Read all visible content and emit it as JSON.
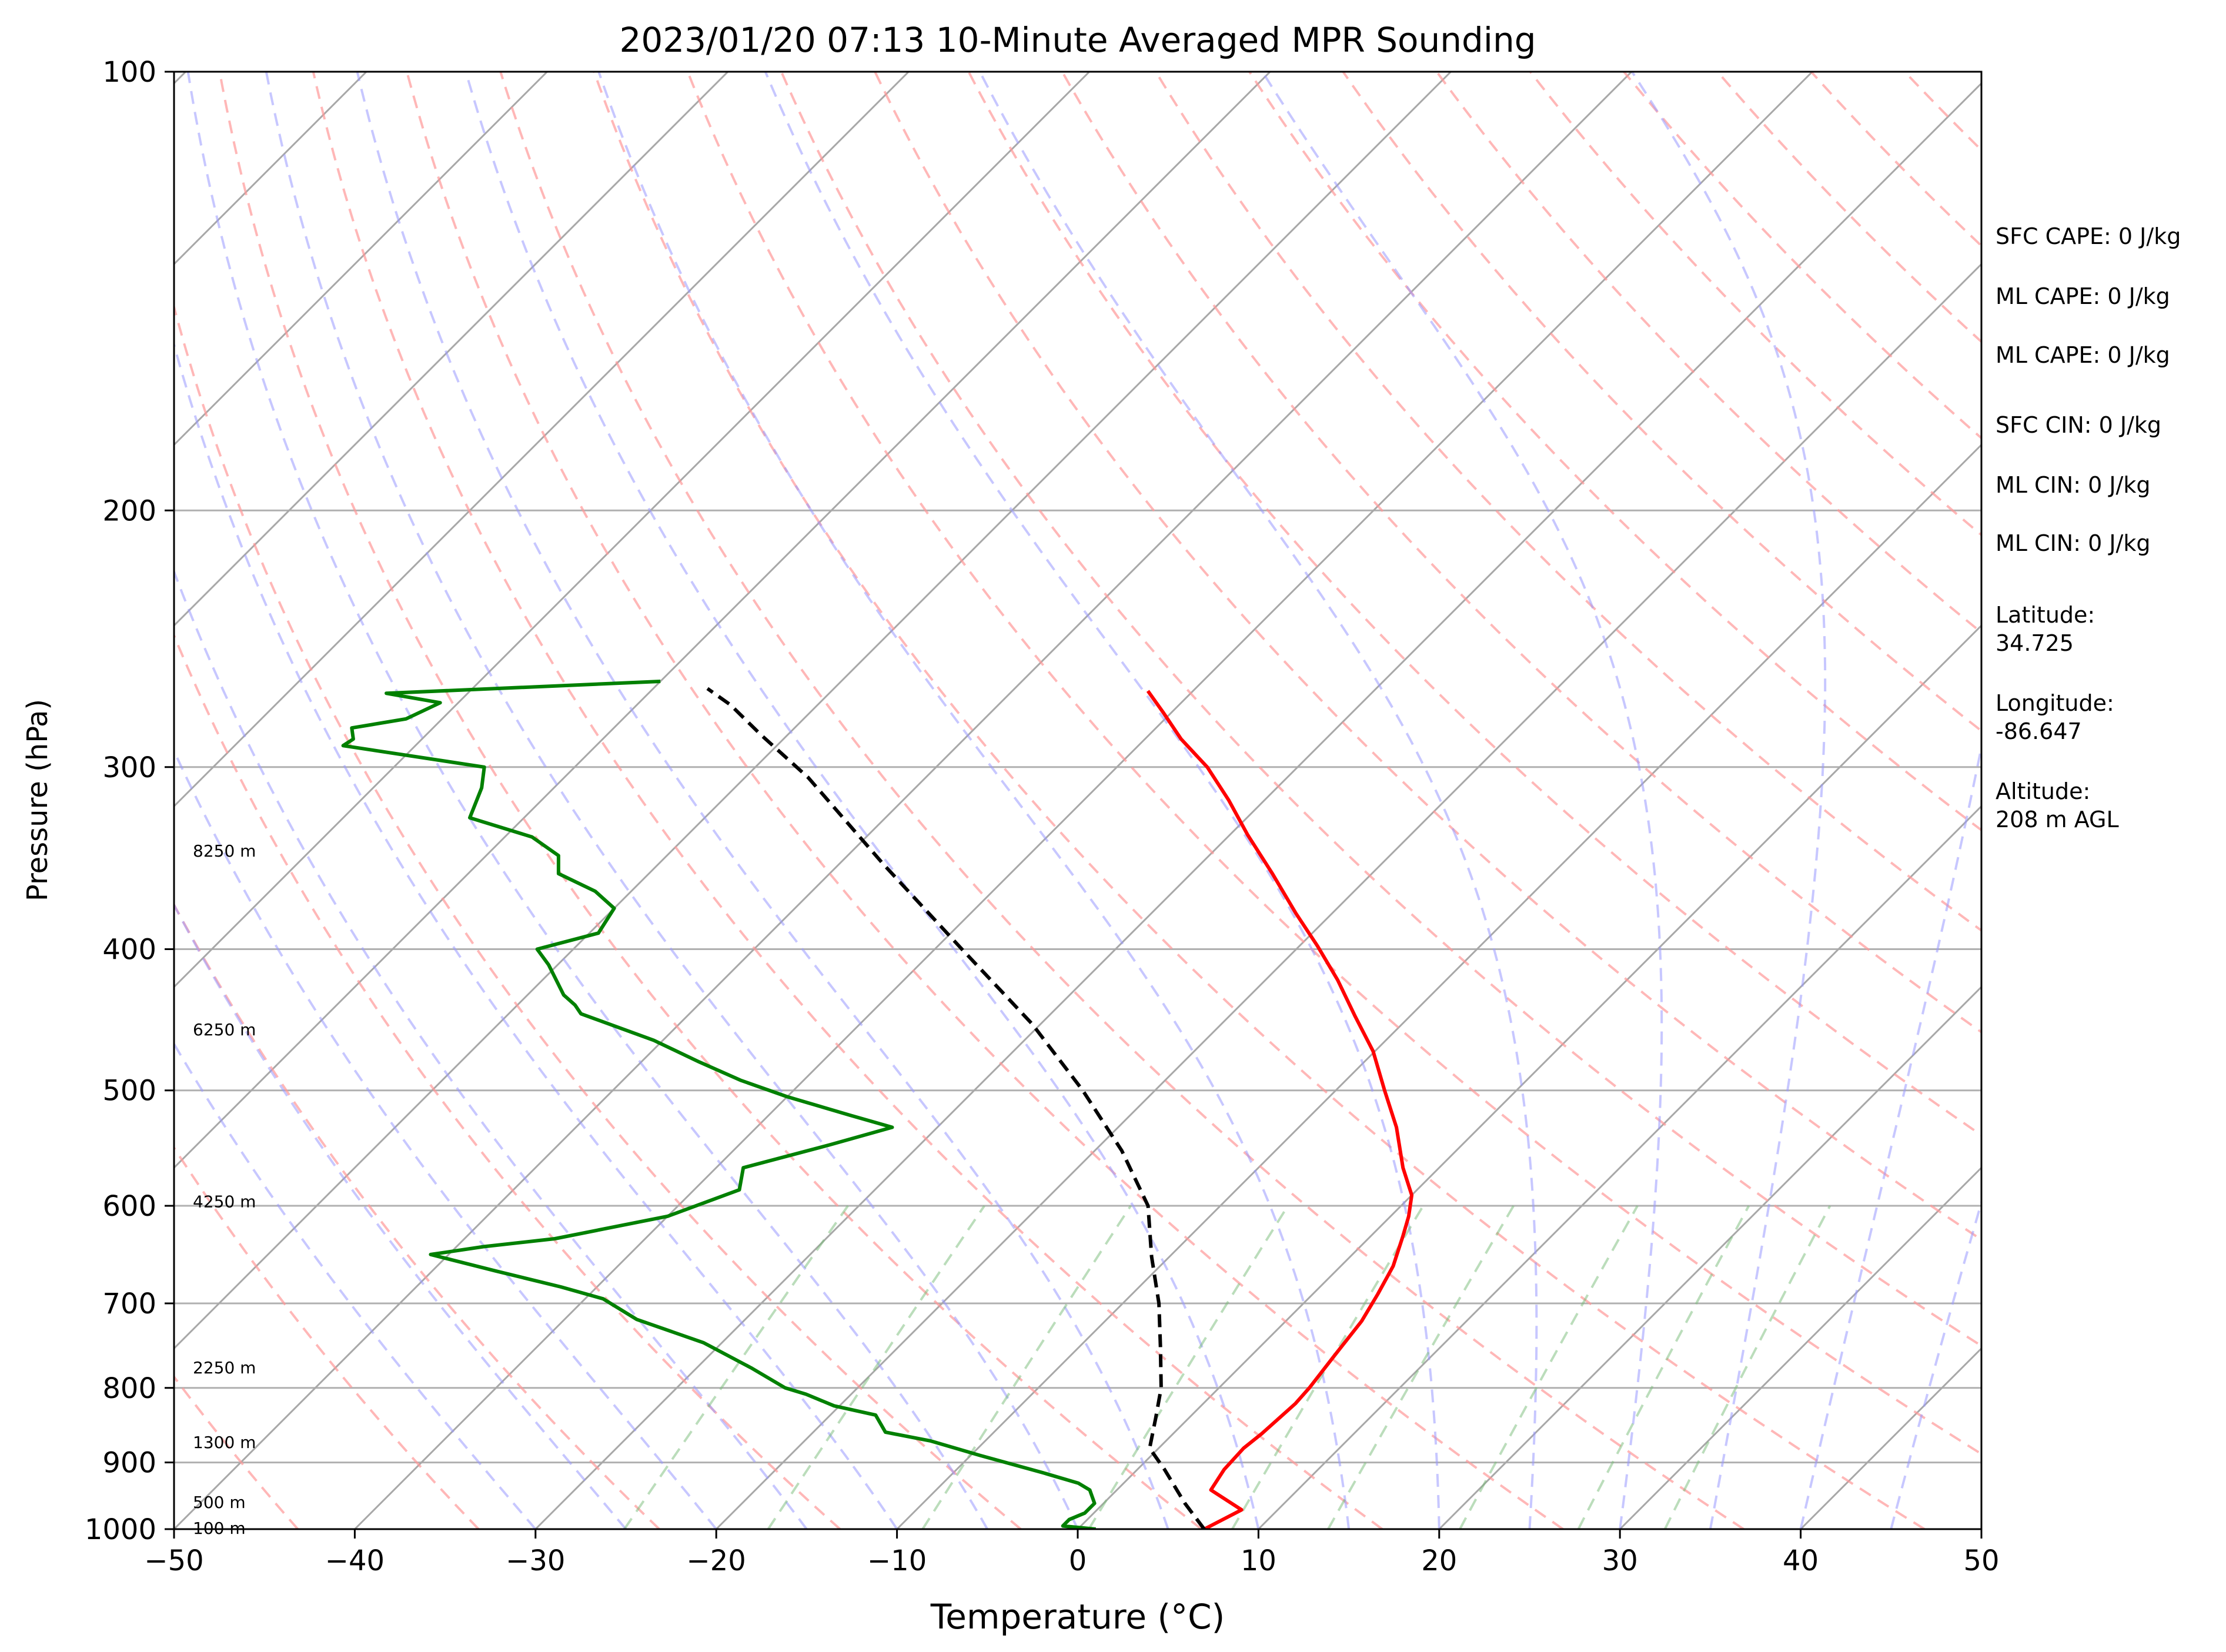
{
  "chart_data": {
    "type": "line",
    "subtype": "skew-t log-p",
    "title": "2023/01/20 07:13 10-Minute Averaged MPR Sounding",
    "xlabel": "Temperature (°C)",
    "ylabel": "Pressure (hPa)",
    "xlim": [
      -50,
      50
    ],
    "ylim": [
      1000,
      100
    ],
    "y_scale": "log",
    "x_ticks": [
      "−50",
      "−40",
      "−30",
      "−20",
      "−10",
      "0",
      "10",
      "20",
      "30",
      "40",
      "50"
    ],
    "x_tick_values": [
      -50,
      -40,
      -30,
      -20,
      -10,
      0,
      10,
      20,
      30,
      40,
      50
    ],
    "y_ticks": [
      "100",
      "200",
      "300",
      "400",
      "500",
      "600",
      "700",
      "800",
      "900",
      "1000"
    ],
    "y_tick_values": [
      100,
      200,
      300,
      400,
      500,
      600,
      700,
      800,
      900,
      1000
    ],
    "grid": true,
    "height_labels": [
      {
        "text": "8250 m",
        "p": 343
      },
      {
        "text": "6250 m",
        "p": 455
      },
      {
        "text": "4250 m",
        "p": 597
      },
      {
        "text": "2250 m",
        "p": 776
      },
      {
        "text": "1300 m",
        "p": 873
      },
      {
        "text": "500 m",
        "p": 960
      },
      {
        "text": "100 m",
        "p": 1000
      }
    ],
    "series": [
      {
        "role": "temperature",
        "color": "#ff0000",
        "points": [
          [
            7.0,
            1000
          ],
          [
            8.0,
            970
          ],
          [
            5.2,
            940
          ],
          [
            4.8,
            910
          ],
          [
            4.7,
            880
          ],
          [
            4.9,
            860
          ],
          [
            5.0,
            840
          ],
          [
            5.1,
            820
          ],
          [
            5.0,
            800
          ],
          [
            4.6,
            760
          ],
          [
            4.2,
            720
          ],
          [
            3.6,
            690
          ],
          [
            2.9,
            660
          ],
          [
            1.8,
            630
          ],
          [
            1.0,
            610
          ],
          [
            0.0,
            590
          ],
          [
            -2.0,
            565
          ],
          [
            -4.6,
            530
          ],
          [
            -7.3,
            500
          ],
          [
            -10.1,
            470
          ],
          [
            -13.0,
            445
          ],
          [
            -16.0,
            420
          ],
          [
            -19.0,
            398
          ],
          [
            -22.0,
            378
          ],
          [
            -25.5,
            355
          ],
          [
            -29.0,
            334
          ],
          [
            -32.0,
            316
          ],
          [
            -35.0,
            300
          ],
          [
            -38.0,
            287
          ],
          [
            -40.5,
            275
          ],
          [
            -42.5,
            266
          ]
        ]
      },
      {
        "role": "dewpoint",
        "color": "#008000",
        "points": [
          [
            1.0,
            1000
          ],
          [
            -1.0,
            995
          ],
          [
            -1.0,
            985
          ],
          [
            -0.5,
            975
          ],
          [
            -0.5,
            960
          ],
          [
            -1.5,
            940
          ],
          [
            -2.5,
            930
          ],
          [
            -5.0,
            915
          ],
          [
            -9.5,
            890
          ],
          [
            -13.0,
            870
          ],
          [
            -16.0,
            858
          ],
          [
            -17.5,
            835
          ],
          [
            -20.3,
            823
          ],
          [
            -22.5,
            808
          ],
          [
            -24.0,
            800
          ],
          [
            -27.0,
            775
          ],
          [
            -31.0,
            745
          ],
          [
            -36.0,
            718
          ],
          [
            -39.0,
            695
          ],
          [
            -42.0,
            682
          ],
          [
            -46.5,
            665
          ],
          [
            -51.0,
            648
          ],
          [
            -48.5,
            640
          ],
          [
            -45.0,
            632
          ],
          [
            -40.0,
            610
          ],
          [
            -37.5,
            585
          ],
          [
            -38.5,
            565
          ],
          [
            -35.0,
            545
          ],
          [
            -32.5,
            530
          ],
          [
            -35.5,
            520
          ],
          [
            -40.0,
            505
          ],
          [
            -43.5,
            492
          ],
          [
            -46.8,
            478
          ],
          [
            -50.5,
            462
          ],
          [
            -56.0,
            443
          ],
          [
            -56.8,
            437
          ],
          [
            -58.0,
            430
          ],
          [
            -60.5,
            410
          ],
          [
            -62.0,
            400
          ],
          [
            -59.5,
            390
          ],
          [
            -60.0,
            375
          ],
          [
            -62.0,
            365
          ],
          [
            -65.0,
            355
          ],
          [
            -66.0,
            345
          ],
          [
            -68.5,
            335
          ],
          [
            -73.0,
            325
          ],
          [
            -74.0,
            310
          ],
          [
            -75.0,
            300
          ],
          [
            -84.0,
            290
          ],
          [
            -83.8,
            287
          ],
          [
            -84.5,
            282
          ],
          [
            -82.0,
            278
          ],
          [
            -81.0,
            271
          ],
          [
            -84.5,
            267
          ],
          [
            -70.0,
            262
          ]
        ]
      },
      {
        "role": "parcel",
        "color": "#000000",
        "points": [
          [
            7.0,
            1000
          ],
          [
            4.5,
            960
          ],
          [
            1.5,
            910
          ],
          [
            -0.5,
            880
          ],
          [
            -1.8,
            840
          ],
          [
            -3.2,
            800
          ],
          [
            -5.5,
            750
          ],
          [
            -8.0,
            700
          ],
          [
            -11.0,
            650
          ],
          [
            -14.0,
            600
          ],
          [
            -18.5,
            550
          ],
          [
            -24.0,
            500
          ],
          [
            -30.5,
            450
          ],
          [
            -38.5,
            400
          ],
          [
            -47.5,
            350
          ],
          [
            -56.5,
            305
          ],
          [
            -61.5,
            285
          ],
          [
            -64.8,
            272
          ],
          [
            -67.0,
            265
          ]
        ]
      }
    ],
    "annotations": [
      "SFC CAPE: 0 J/kg",
      "ML CAPE: 0 J/kg",
      "ML CAPE: 0 J/kg",
      "SFC CIN: 0 J/kg",
      "ML CIN: 0 J/kg",
      "ML CIN: 0 J/kg",
      "Latitude:",
      "34.725",
      "Longitude:",
      "-86.647",
      "Altitude:",
      "208 m AGL"
    ]
  }
}
